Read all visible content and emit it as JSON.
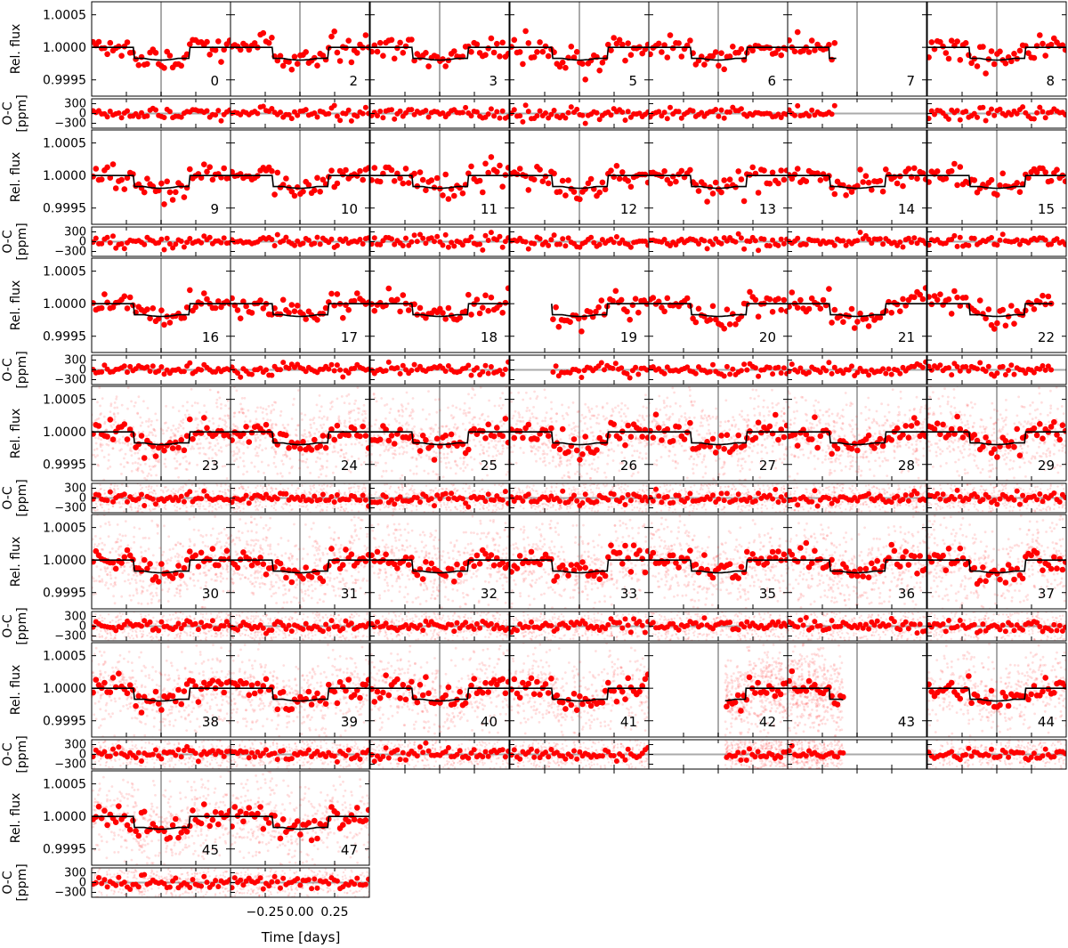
{
  "chart_data": {
    "type": "scatter",
    "title": "",
    "xlabel": "Time [days]",
    "ylabel_flux": "Rel. flux",
    "ylabel_resid_line1": "O-C",
    "ylabel_resid_line2": "[ppm]",
    "x_range": [
      -0.5,
      0.5
    ],
    "flux_range": [
      0.99925,
      1.0007
    ],
    "resid_range": [
      -450,
      450
    ],
    "x_ticks": [
      -0.25,
      0.0,
      0.25
    ],
    "x_tick_labels": [
      "−0.25",
      "0.00",
      "0.25"
    ],
    "flux_ticks": [
      0.9995,
      1.0,
      1.0005
    ],
    "flux_tick_labels": [
      "0.9995",
      "1.0000",
      "1.0005"
    ],
    "resid_ticks": [
      -300,
      0,
      300
    ],
    "resid_tick_labels": [
      "−300",
      "0",
      "300"
    ],
    "model": {
      "baseline": 1.0,
      "depth_ppm": 170,
      "ingress_egress_start": 0.2,
      "full_depth": 0.12,
      "description_free": true
    },
    "colors": {
      "binned_points": "#ff0000",
      "raw_points": "#ff0000",
      "model_line": "#000000",
      "reference_line": "#aaaaaa",
      "axes": "#000000"
    },
    "grid": false,
    "transits": [
      {
        "row": 0,
        "col": 0,
        "label": "0",
        "raw": false,
        "x_min": -0.5,
        "x_max": 0.5
      },
      {
        "row": 0,
        "col": 1,
        "label": "2",
        "raw": false,
        "x_min": -0.5,
        "x_max": 0.5
      },
      {
        "row": 0,
        "col": 2,
        "label": "3",
        "raw": false,
        "x_min": -0.5,
        "x_max": 0.5
      },
      {
        "row": 0,
        "col": 3,
        "label": "5",
        "raw": false,
        "x_min": -0.5,
        "x_max": 0.5
      },
      {
        "row": 0,
        "col": 4,
        "label": "6",
        "raw": false,
        "x_min": -0.5,
        "x_max": 0.5
      },
      {
        "row": 0,
        "col": 5,
        "label": "7",
        "raw": false,
        "x_min": -0.5,
        "x_max": -0.15
      },
      {
        "row": 0,
        "col": 6,
        "label": "8",
        "raw": false,
        "x_min": -0.5,
        "x_max": 0.5
      },
      {
        "row": 1,
        "col": 0,
        "label": "9",
        "raw": false,
        "x_min": -0.5,
        "x_max": 0.5
      },
      {
        "row": 1,
        "col": 1,
        "label": "10",
        "raw": false,
        "x_min": -0.5,
        "x_max": 0.5
      },
      {
        "row": 1,
        "col": 2,
        "label": "11",
        "raw": false,
        "x_min": -0.5,
        "x_max": 0.5
      },
      {
        "row": 1,
        "col": 3,
        "label": "12",
        "raw": false,
        "x_min": -0.5,
        "x_max": 0.5
      },
      {
        "row": 1,
        "col": 4,
        "label": "13",
        "raw": false,
        "x_min": -0.5,
        "x_max": 0.5
      },
      {
        "row": 1,
        "col": 5,
        "label": "14",
        "raw": false,
        "x_min": -0.5,
        "x_max": 0.5
      },
      {
        "row": 1,
        "col": 6,
        "label": "15",
        "raw": false,
        "x_min": -0.5,
        "x_max": 0.5
      },
      {
        "row": 2,
        "col": 0,
        "label": "16",
        "raw": false,
        "x_min": -0.5,
        "x_max": 0.5
      },
      {
        "row": 2,
        "col": 1,
        "label": "17",
        "raw": false,
        "x_min": -0.5,
        "x_max": 0.5
      },
      {
        "row": 2,
        "col": 2,
        "label": "18",
        "raw": false,
        "x_min": -0.5,
        "x_max": 0.5
      },
      {
        "row": 2,
        "col": 3,
        "label": "19",
        "raw": false,
        "x_min": -0.2,
        "x_max": 0.5
      },
      {
        "row": 2,
        "col": 4,
        "label": "20",
        "raw": false,
        "x_min": -0.5,
        "x_max": 0.5
      },
      {
        "row": 2,
        "col": 5,
        "label": "21",
        "raw": false,
        "x_min": -0.5,
        "x_max": 0.5
      },
      {
        "row": 2,
        "col": 6,
        "label": "22",
        "raw": false,
        "x_min": -0.5,
        "x_max": 0.4
      },
      {
        "row": 3,
        "col": 0,
        "label": "23",
        "raw": true,
        "x_min": -0.5,
        "x_max": 0.5
      },
      {
        "row": 3,
        "col": 1,
        "label": "24",
        "raw": true,
        "x_min": -0.5,
        "x_max": 0.5
      },
      {
        "row": 3,
        "col": 2,
        "label": "25",
        "raw": true,
        "x_min": -0.5,
        "x_max": 0.5
      },
      {
        "row": 3,
        "col": 3,
        "label": "26",
        "raw": true,
        "x_min": -0.5,
        "x_max": 0.5
      },
      {
        "row": 3,
        "col": 4,
        "label": "27",
        "raw": true,
        "x_min": -0.5,
        "x_max": 0.5
      },
      {
        "row": 3,
        "col": 5,
        "label": "28",
        "raw": true,
        "x_min": -0.5,
        "x_max": 0.5
      },
      {
        "row": 3,
        "col": 6,
        "label": "29",
        "raw": true,
        "x_min": -0.5,
        "x_max": 0.5
      },
      {
        "row": 4,
        "col": 0,
        "label": "30",
        "raw": true,
        "x_min": -0.5,
        "x_max": 0.5
      },
      {
        "row": 4,
        "col": 1,
        "label": "31",
        "raw": true,
        "x_min": -0.5,
        "x_max": 0.5
      },
      {
        "row": 4,
        "col": 2,
        "label": "32",
        "raw": true,
        "x_min": -0.5,
        "x_max": 0.5
      },
      {
        "row": 4,
        "col": 3,
        "label": "33",
        "raw": true,
        "x_min": -0.5,
        "x_max": 0.5
      },
      {
        "row": 4,
        "col": 4,
        "label": "35",
        "raw": true,
        "x_min": -0.5,
        "x_max": 0.5
      },
      {
        "row": 4,
        "col": 5,
        "label": "36",
        "raw": true,
        "x_min": -0.5,
        "x_max": 0.5
      },
      {
        "row": 4,
        "col": 6,
        "label": "37",
        "raw": true,
        "x_min": -0.5,
        "x_max": 0.5
      },
      {
        "row": 5,
        "col": 0,
        "label": "38",
        "raw": true,
        "x_min": -0.5,
        "x_max": 0.5
      },
      {
        "row": 5,
        "col": 1,
        "label": "39",
        "raw": true,
        "x_min": -0.5,
        "x_max": 0.5
      },
      {
        "row": 5,
        "col": 2,
        "label": "40",
        "raw": true,
        "x_min": -0.5,
        "x_max": 0.5
      },
      {
        "row": 5,
        "col": 3,
        "label": "41",
        "raw": true,
        "x_min": -0.5,
        "x_max": 0.5
      },
      {
        "row": 5,
        "col": 4,
        "label": "42",
        "raw": true,
        "x_min": 0.05,
        "x_max": 0.5
      },
      {
        "row": 5,
        "col": 5,
        "label": "43",
        "raw": true,
        "x_min": -0.5,
        "x_max": -0.1
      },
      {
        "row": 5,
        "col": 6,
        "label": "44",
        "raw": true,
        "x_min": -0.5,
        "x_max": 0.5
      },
      {
        "row": 6,
        "col": 0,
        "label": "45",
        "raw": true,
        "x_min": -0.5,
        "x_max": 0.5
      },
      {
        "row": 6,
        "col": 1,
        "label": "47",
        "raw": true,
        "x_min": -0.5,
        "x_max": 0.5
      }
    ]
  }
}
